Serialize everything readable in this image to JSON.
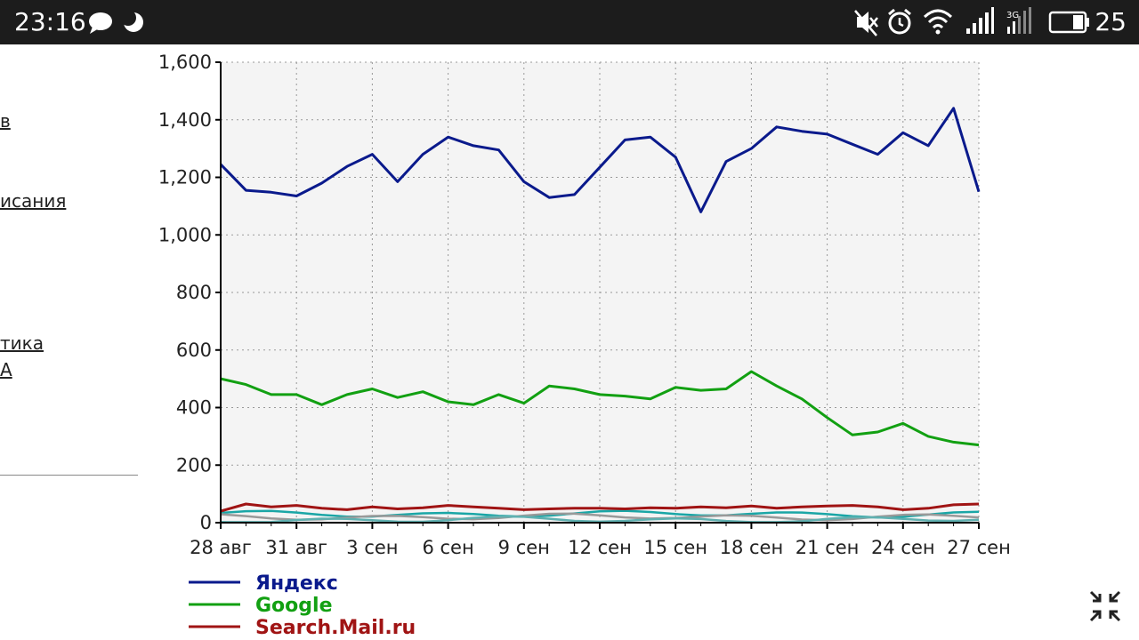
{
  "status_bar": {
    "time": "23:16",
    "battery": "25",
    "network_label": "3G",
    "icons": [
      "chat-bubble-icon",
      "moon-icon",
      "mute-icon",
      "alarm-icon",
      "wifi-icon",
      "signal-icon",
      "signal-3g-icon",
      "battery-icon"
    ]
  },
  "sidebar": {
    "links": [
      "в",
      "исания",
      "тика",
      "А"
    ]
  },
  "controls": {
    "collapse_icon": "collapse-arrows-icon"
  },
  "chart_data": {
    "type": "line",
    "title": "",
    "xlabel": "",
    "ylabel": "",
    "ylim": [
      0,
      1600
    ],
    "y_ticks": [
      0,
      200,
      400,
      600,
      800,
      1000,
      1200,
      1400,
      1600
    ],
    "y_tick_labels": [
      "0",
      "200",
      "400",
      "600",
      "800",
      "1,000",
      "1,200",
      "1,400",
      "1,600"
    ],
    "x_tick_labels": [
      "28 авг",
      "31 авг",
      "3 сен",
      "6 сен",
      "9 сен",
      "12 сен",
      "15 сен",
      "18 сен",
      "21 сен",
      "24 сен",
      "27 сен"
    ],
    "grid": true,
    "legend_position": "bottom-left",
    "series": [
      {
        "name": "Яндекс",
        "color": "#0a1a8c",
        "values": [
          1245,
          1155,
          1148,
          1135,
          1180,
          1238,
          1280,
          1185,
          1280,
          1340,
          1310,
          1295,
          1185,
          1130,
          1140,
          1235,
          1330,
          1340,
          1270,
          1080,
          1255,
          1300,
          1375,
          1360,
          1350,
          1315,
          1280,
          1355,
          1310,
          1440,
          1150
        ]
      },
      {
        "name": "Google",
        "color": "#12a012",
        "values": [
          500,
          480,
          445,
          445,
          410,
          445,
          465,
          435,
          455,
          420,
          410,
          445,
          415,
          475,
          465,
          445,
          440,
          430,
          470,
          460,
          465,
          525,
          475,
          430,
          365,
          305,
          315,
          345,
          300,
          280,
          270
        ]
      },
      {
        "name": "Search.Mail.ru",
        "color": "#a01414",
        "values": [
          40,
          65,
          55,
          60,
          50,
          45,
          55,
          48,
          52,
          60,
          55,
          50,
          45,
          48,
          50,
          50,
          48,
          52,
          50,
          55,
          52,
          58,
          50,
          55,
          58,
          60,
          55,
          45,
          50,
          62,
          65
        ]
      }
    ],
    "minor_series_colors": [
      "#1aa6a6",
      "#999999",
      "#5fb0b0"
    ]
  }
}
